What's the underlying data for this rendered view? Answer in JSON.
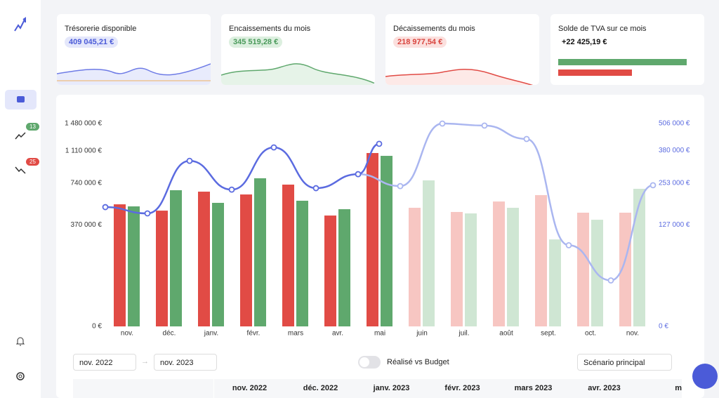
{
  "sidebar": {
    "badges": [
      "13",
      "25"
    ]
  },
  "kpis": [
    {
      "title": "Trésorerie disponible",
      "value": "409 045,21 €"
    },
    {
      "title": "Encaissements du mois",
      "value": "345 519,28 €"
    },
    {
      "title": "Décaissements du mois",
      "value": "218 977,54 €"
    },
    {
      "title": "Solde de TVA sur ce mois",
      "value": "+22 425,19 €"
    }
  ],
  "chart_data": {
    "type": "bar",
    "yscale": "sqrt",
    "categories": [
      "nov.",
      "déc.",
      "janv.",
      "févr.",
      "mars",
      "avr.",
      "mai",
      "juin",
      "juil.",
      "août",
      "sept.",
      "oct.",
      "nov."
    ],
    "ylim": [
      0,
      1480000
    ],
    "yticks": [
      {
        "value": 0,
        "label": "0 €"
      },
      {
        "value": 370000,
        "label": "370 000 €"
      },
      {
        "value": 740000,
        "label": "740 000 €"
      },
      {
        "value": 1110000,
        "label": "1 110 000 €"
      },
      {
        "value": 1480000,
        "label": "1 480 000 €"
      }
    ],
    "y2lim": [
      0,
      506000
    ],
    "y2ticks": [
      {
        "value": 0,
        "label": "0 €"
      },
      {
        "value": 127000,
        "label": "127 000 €"
      },
      {
        "value": 253000,
        "label": "253 000 €"
      },
      {
        "value": 380000,
        "label": "380 000 €"
      },
      {
        "value": 506000,
        "label": "506 000 €"
      }
    ],
    "series": [
      {
        "type": "bar",
        "color": "#e14b45",
        "colors": [
          "#e14b45",
          "#e14b45",
          "#e14b45",
          "#e14b45",
          "#e14b45",
          "#e14b45",
          "#e14b45",
          "#f7c6c2",
          "#f7c6c2",
          "#f7c6c2",
          "#f7c6c2",
          "#f7c6c2",
          "#f7c6c2"
        ],
        "values": [
          536000,
          482000,
          653000,
          626000,
          723000,
          442000,
          1081000,
          506000,
          471000,
          561000,
          620000,
          465000,
          465000
        ]
      },
      {
        "type": "bar",
        "color": "#5fa86d",
        "colors": [
          "#5fa86d",
          "#5fa86d",
          "#5fa86d",
          "#5fa86d",
          "#5fa86d",
          "#5fa86d",
          "#5fa86d",
          "#cfe6d3",
          "#cfe6d3",
          "#cfe6d3",
          "#cfe6d3",
          "#cfe6d3",
          "#cfe6d3"
        ],
        "values": [
          518000,
          667000,
          549000,
          789000,
          568000,
          494000,
          1046000,
          767000,
          459000,
          506000,
          272000,
          409000,
          681000
        ]
      },
      {
        "type": "line",
        "axis": "y2",
        "color": "#aab6f0",
        "x": [
          6,
          7,
          8,
          9,
          10,
          11,
          12,
          13
        ],
        "values": [
          285000,
          242000,
          506000,
          496000,
          432000,
          81000,
          26000,
          245000
        ]
      },
      {
        "type": "line",
        "axis": "y2",
        "color": "#5b6be0",
        "x": [
          0,
          1,
          2,
          3,
          4,
          5,
          6,
          6.5
        ],
        "values": [
          175000,
          157000,
          337000,
          230000,
          394000,
          235000,
          285000,
          410000
        ]
      }
    ]
  },
  "toolbar": {
    "from": "nov. 2022",
    "to": "nov. 2023",
    "toggle": "Réalisé vs Budget",
    "scenario": "Scénario principal"
  },
  "table": {
    "columns": [
      "nov. 2022",
      "déc. 2022",
      "janv. 2023",
      "févr. 2023",
      "mars 2023",
      "avr. 2023",
      "m"
    ]
  }
}
